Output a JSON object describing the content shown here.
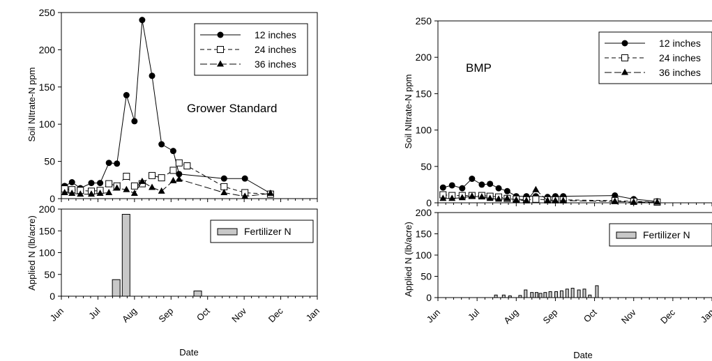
{
  "months": [
    "Jun",
    "Jul",
    "Aug",
    "Sep",
    "Oct",
    "Nov",
    "Dec",
    "Jan"
  ],
  "colors": {
    "line": "#000000",
    "bar_fill": "#c8c8c8"
  },
  "chart_data": [
    {
      "type": "line",
      "panel": "left-top",
      "annotation": "Grower Standard",
      "ylabel": "Soil NItrate-N ppm",
      "ylim": [
        0,
        250
      ],
      "yticks": [
        0,
        50,
        100,
        150,
        200,
        250
      ],
      "x_unit": "month index (0=Jun 1, 1=Jul 1, ... 7=Jan 1)",
      "legend_position": "top-right",
      "series": [
        {
          "name": "12 inches",
          "marker": "filled-circle",
          "line": "solid",
          "x": [
            0.09,
            0.29,
            0.52,
            0.82,
            1.06,
            1.3,
            1.52,
            1.78,
            2.0,
            2.21,
            2.48,
            2.74,
            3.06,
            3.22,
            4.45,
            5.02,
            5.72
          ],
          "y": [
            17,
            22,
            14,
            21,
            21,
            48,
            47,
            139,
            104,
            240,
            165,
            73,
            64,
            33,
            27,
            27,
            7
          ]
        },
        {
          "name": "24 inches",
          "marker": "open-square",
          "line": "dash",
          "x": [
            0.09,
            0.29,
            0.52,
            0.82,
            1.06,
            1.3,
            1.52,
            1.78,
            2.0,
            2.21,
            2.48,
            2.74,
            3.06,
            3.22,
            3.44,
            4.45,
            5.02,
            5.72
          ],
          "y": [
            13,
            12,
            11,
            10,
            11,
            20,
            17,
            30,
            17,
            20,
            31,
            28,
            38,
            48,
            44,
            16,
            8,
            6
          ]
        },
        {
          "name": "36 inches",
          "marker": "filled-triangle",
          "line": "longdash",
          "x": [
            0.09,
            0.29,
            0.52,
            0.82,
            1.06,
            1.3,
            1.52,
            1.78,
            2.0,
            2.21,
            2.48,
            2.74,
            3.06,
            3.22,
            4.45,
            5.02,
            5.72
          ],
          "y": [
            8,
            7,
            6,
            6,
            7,
            8,
            14,
            12,
            7,
            23,
            15,
            10,
            24,
            26,
            8,
            3,
            7
          ]
        }
      ]
    },
    {
      "type": "bar",
      "panel": "left-bottom",
      "xlabel": "Date",
      "ylabel": "Applied N (lb/acre)",
      "ylim": [
        0,
        200
      ],
      "yticks": [
        0,
        50,
        100,
        150,
        200
      ],
      "legend": "Fertilizer N",
      "legend_position": "top-right",
      "x": [
        1.5,
        1.77,
        3.73
      ],
      "values": [
        38,
        188,
        12
      ]
    },
    {
      "type": "line",
      "panel": "right-top",
      "annotation": "BMP",
      "ylabel": "Soil NItrate-N ppm",
      "ylim": [
        0,
        250
      ],
      "yticks": [
        0,
        50,
        100,
        150,
        200,
        250
      ],
      "legend_position": "top-right",
      "series": [
        {
          "name": "12 inches",
          "marker": "filled-circle",
          "line": "solid",
          "x": [
            0.13,
            0.36,
            0.62,
            0.87,
            1.12,
            1.33,
            1.55,
            1.77,
            2.0,
            2.26,
            2.5,
            2.8,
            3.0,
            3.2,
            4.52,
            5.0,
            5.6
          ],
          "y": [
            21,
            24,
            20,
            33,
            25,
            26,
            20,
            16,
            9,
            9,
            9,
            8,
            9,
            9,
            10,
            5,
            2
          ]
        },
        {
          "name": "24 inches",
          "marker": "open-square",
          "line": "dash",
          "x": [
            0.13,
            0.36,
            0.62,
            0.87,
            1.12,
            1.33,
            1.55,
            1.77,
            2.0,
            2.26,
            2.5,
            2.8,
            3.0,
            3.2,
            4.52,
            5.0,
            5.6
          ],
          "y": [
            11,
            10,
            10,
            10,
            10,
            9,
            8,
            6,
            5,
            4,
            5,
            4,
            4,
            4,
            3,
            2,
            1
          ]
        },
        {
          "name": "36 inches",
          "marker": "filled-triangle",
          "line": "longdash",
          "x": [
            0.13,
            0.36,
            0.62,
            0.87,
            1.12,
            1.33,
            1.55,
            1.77,
            2.0,
            2.26,
            2.5,
            2.8,
            3.0,
            3.2,
            4.52,
            5.0,
            5.6
          ],
          "y": [
            6,
            6,
            7,
            9,
            8,
            6,
            5,
            6,
            4,
            3,
            18,
            3,
            3,
            3,
            2,
            1,
            1
          ]
        }
      ]
    },
    {
      "type": "bar",
      "panel": "right-bottom",
      "xlabel": "Date",
      "ylabel": "Applied N (lb/acre)",
      "ylim": [
        0,
        200
      ],
      "yticks": [
        0,
        50,
        100,
        150,
        200
      ],
      "legend": "Fertilizer N",
      "legend_position": "top-right",
      "x": [
        1.48,
        1.68,
        1.84,
        2.1,
        2.24,
        2.4,
        2.52,
        2.62,
        2.74,
        2.87,
        3.02,
        3.16,
        3.3,
        3.44,
        3.6,
        3.74,
        3.88,
        4.06
      ],
      "values": [
        6,
        6,
        4,
        5,
        18,
        12,
        12,
        10,
        12,
        14,
        14,
        16,
        20,
        22,
        18,
        20,
        6,
        28
      ]
    }
  ]
}
